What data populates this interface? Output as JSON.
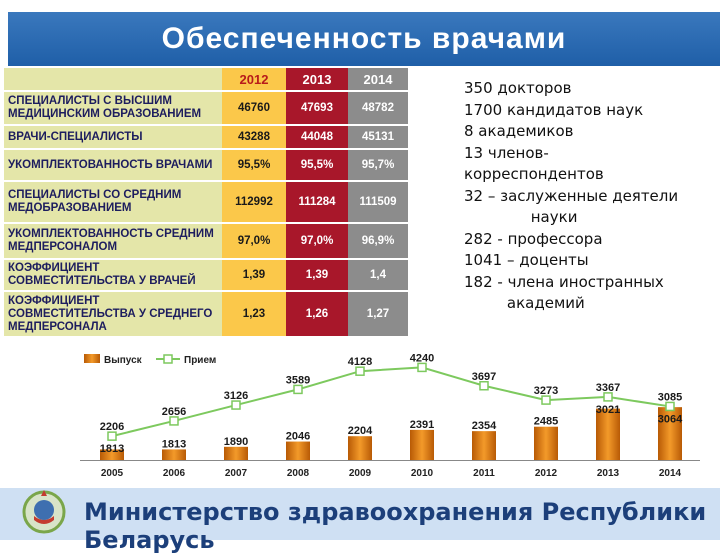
{
  "header": {
    "title": "Обеспеченность врачами"
  },
  "table": {
    "years": [
      "2012",
      "2013",
      "2014"
    ],
    "rows": [
      {
        "label": "СПЕЦИАЛИСТЫ С ВЫСШИМ МЕДИЦИНСКИМ ОБРАЗОВАНИЕМ",
        "values": [
          "46760",
          "47693",
          "48782"
        ]
      },
      {
        "label": "ВРАЧИ-СПЕЦИАЛИСТЫ",
        "values": [
          "43288",
          "44048",
          "45131"
        ]
      },
      {
        "label": "УКОМПЛЕКТОВАННОСТЬ ВРАЧАМИ",
        "values": [
          "95,5%",
          "95,5%",
          "95,7%"
        ]
      },
      {
        "label": "СПЕЦИАЛИСТЫ СО СРЕДНИМ МЕДОБРАЗОВАНИЕМ",
        "values": [
          "112992",
          "111284",
          "111509"
        ]
      },
      {
        "label": "УКОМПЛЕКТОВАННОСТЬ СРЕДНИМ МЕДПЕРСОНАЛОМ",
        "values": [
          "97,0%",
          "97,0%",
          "96,9%"
        ]
      },
      {
        "label": "КОЭФФИЦИЕНТ СОВМЕСТИТЕЛЬСТВА У ВРАЧЕЙ",
        "values": [
          "1,39",
          "1,39",
          "1,4"
        ]
      },
      {
        "label": "КОЭФФИЦИЕНТ СОВМЕСТИТЕЛЬСТВА У СРЕДНЕГО МЕДПЕРСОНАЛА",
        "values": [
          "1,23",
          "1,26",
          "1,27"
        ]
      }
    ]
  },
  "facts": [
    "350 докторов",
    "1700 кандидатов наук",
    "8 академиков",
    "13 членов-",
    "корреспондентов",
    "32 – заслуженные деятели",
    "              науки",
    "282 - профессора",
    "1041 – доценты",
    "182 - члена иностранных",
    "         академий"
  ],
  "chart_data": {
    "type": "bar",
    "categories": [
      "2005",
      "2006",
      "2007",
      "2008",
      "2009",
      "2010",
      "2011",
      "2012",
      "2013",
      "2014"
    ],
    "series": [
      {
        "name": "Выпуск",
        "type": "bar",
        "values": [
          1813,
          1813,
          1890,
          2046,
          2204,
          2391,
          2354,
          2485,
          3021,
          3064
        ]
      },
      {
        "name": "Прием",
        "type": "line",
        "values": [
          2206,
          2656,
          3126,
          3589,
          4128,
          4240,
          3697,
          3273,
          3367,
          3085
        ]
      }
    ],
    "legend": "top-left",
    "colors": {
      "bar": "#e07b10",
      "line": "#7dc95e"
    }
  },
  "footer": {
    "text": "Министерство здравоохранения Республики Беларусь"
  },
  "emblem": {
    "icon": "belarus-emblem-icon"
  }
}
